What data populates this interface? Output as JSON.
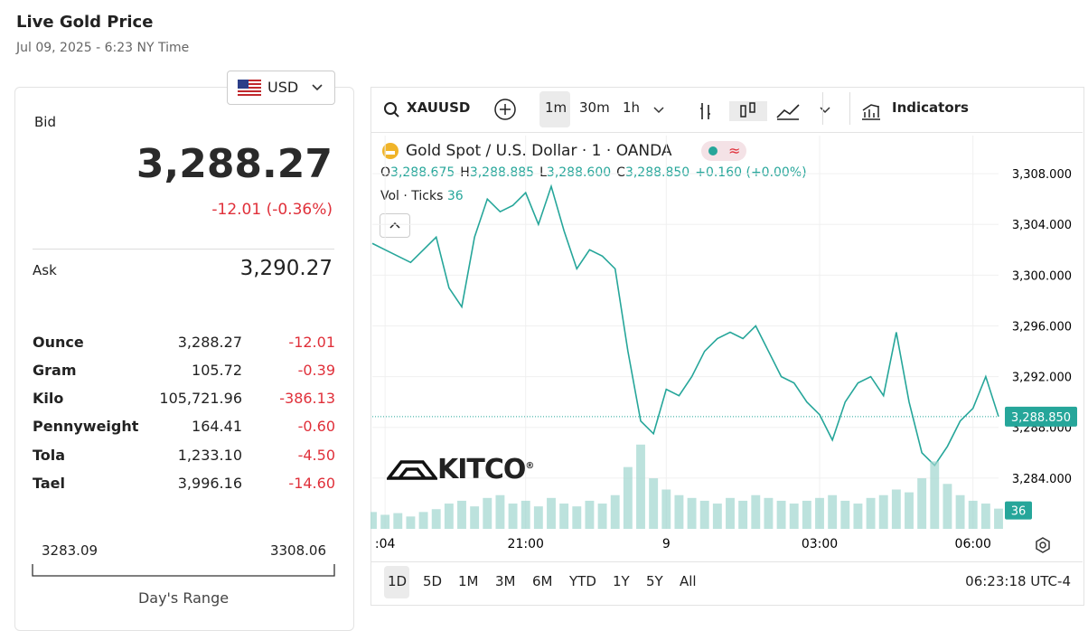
{
  "header": {
    "title": "Live Gold Price",
    "subtitle": "Jul 09, 2025 - 6:23 NY Time"
  },
  "currency": "USD",
  "bid": {
    "label": "Bid",
    "price": "3,288.27",
    "change": "-12.01 (-0.36%)"
  },
  "ask": {
    "label": "Ask",
    "price": "3,290.27"
  },
  "table": {
    "rows": [
      [
        "Ounce",
        "3,288.27",
        "-12.01"
      ],
      [
        "Gram",
        "105.72",
        "-0.39"
      ],
      [
        "Kilo",
        "105,721.96",
        "-386.13"
      ],
      [
        "Pennyweight",
        "164.41",
        "-0.60"
      ],
      [
        "Tola",
        "1,233.10",
        "-4.50"
      ],
      [
        "Tael",
        "3,996.16",
        "-14.60"
      ]
    ]
  },
  "day_range": {
    "low": "3283.09",
    "high": "3308.06",
    "label": "Day's Range"
  },
  "toolbar": {
    "symbol": "XAUUSD",
    "intervals": [
      "1m",
      "30m",
      "1h"
    ],
    "indicators": "Indicators"
  },
  "legend": {
    "title": "Gold Spot / U.S. Dollar · 1 · OANDA",
    "ohlc": [
      {
        "label": "O",
        "value": "3,288.675"
      },
      {
        "label": "H",
        "value": "3,288.885"
      },
      {
        "label": "L",
        "value": "3,288.600"
      },
      {
        "label": "C",
        "value": "3,288.850"
      }
    ],
    "change": "+0.160 (+0.00%)",
    "volume_label": "Vol · Ticks"
  },
  "watermark": "KITCO",
  "ranges": [
    "1D",
    "5D",
    "1M",
    "3M",
    "6M",
    "YTD",
    "1Y",
    "5Y",
    "All"
  ],
  "clock": "06:23:18 UTC-4",
  "chart_data": {
    "type": "line",
    "categories": [
      null,
      ":04",
      null,
      null,
      null,
      null,
      null,
      null,
      null,
      null,
      null,
      null,
      "21:00",
      null,
      null,
      null,
      null,
      null,
      null,
      null,
      null,
      null,
      null,
      "9",
      null,
      null,
      null,
      null,
      null,
      null,
      null,
      null,
      null,
      null,
      null,
      "03:00",
      null,
      null,
      null,
      null,
      null,
      null,
      null,
      null,
      null,
      null,
      null,
      "06:00",
      null,
      null
    ],
    "series": [
      {
        "color": "#26a69a",
        "values": [
          3302.5,
          3302.0,
          3301.5,
          3301.0,
          3302.0,
          3303.0,
          3299.0,
          3297.5,
          3303.0,
          3306.0,
          3305.0,
          3305.5,
          3306.5,
          3304.0,
          3307.0,
          3303.5,
          3300.5,
          3302.0,
          3301.5,
          3300.5,
          3294.0,
          3288.5,
          3287.5,
          3291.0,
          3290.5,
          3292.0,
          3294.0,
          3295.0,
          3295.5,
          3295.0,
          3296.0,
          3294.0,
          3292.0,
          3291.5,
          3290.0,
          3289.0,
          3287.0,
          3290.0,
          3291.5,
          3292.0,
          3290.5,
          3295.5,
          3290.0,
          3286.0,
          3285.0,
          3286.5,
          3288.5,
          3289.5,
          3292.0,
          3288.85
        ]
      },
      {
        "color": "#9fd5cf",
        "axis": "y2",
        "values": [
          30,
          25,
          28,
          22,
          30,
          35,
          45,
          50,
          40,
          55,
          60,
          45,
          50,
          40,
          55,
          45,
          40,
          50,
          45,
          60,
          110,
          150,
          90,
          70,
          60,
          55,
          50,
          45,
          55,
          50,
          60,
          55,
          50,
          45,
          50,
          55,
          60,
          50,
          45,
          55,
          60,
          70,
          65,
          90,
          120,
          80,
          60,
          50,
          45,
          36
        ]
      }
    ],
    "ylim": [
      3280,
      3311
    ],
    "yticks": [
      {
        "value": 3284,
        "label": "3,284.000"
      },
      {
        "value": 3288,
        "label": "3,288.000"
      },
      {
        "value": 3292,
        "label": "3,292.000"
      },
      {
        "value": 3296,
        "label": "3,296.000"
      },
      {
        "value": 3300,
        "label": "3,300.000"
      },
      {
        "value": 3304,
        "label": "3,304.000"
      },
      {
        "value": 3308,
        "label": "3,308.000"
      }
    ],
    "y2lim": [
      0,
      700
    ],
    "grid": true
  }
}
